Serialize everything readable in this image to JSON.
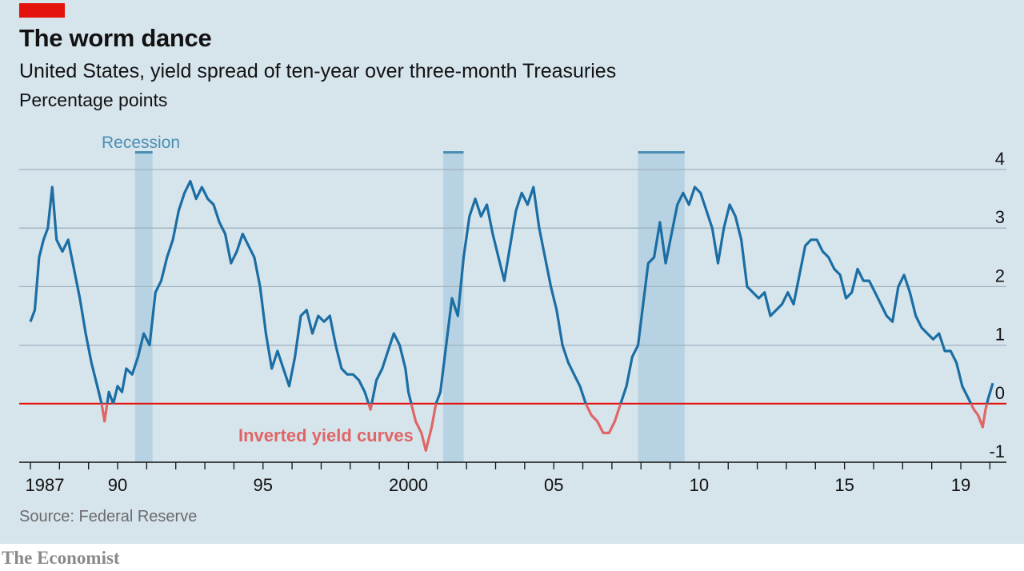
{
  "header": {
    "title": "The worm dance",
    "subtitle": "United States, yield spread of ten-year over three-month Treasuries",
    "unit": "Percentage points"
  },
  "footer": {
    "source": "Source: Federal Reserve",
    "brand": "The Economist"
  },
  "annotations": {
    "recession_label": "Recession",
    "inverted_label": "Inverted yield curves"
  },
  "colors": {
    "panel_background": "#d6e4ec",
    "series_line": "#1b6ea4",
    "inverted_segment": "#e06666",
    "zero_line": "#e3120b",
    "recession_band": "#b7d2e2",
    "recession_cap": "#4a8fb3",
    "gridline": "#9fb3c0",
    "brand_tag": "#e3120b"
  },
  "chart_data": {
    "type": "line",
    "title": "The worm dance",
    "subtitle": "United States, yield spread of ten-year over three-month Treasuries",
    "ylabel": "Percentage points",
    "xlabel": "",
    "xlim": [
      1987,
      2020.4
    ],
    "ylim": [
      -1,
      4
    ],
    "y_ticks": [
      -1,
      0,
      1,
      2,
      3,
      4
    ],
    "y_tick_labels": [
      "-1",
      "0",
      "1",
      "2",
      "3",
      "4"
    ],
    "x_tick_labels": [
      {
        "year": 1987,
        "label": "1987"
      },
      {
        "year": 1990,
        "label": "90"
      },
      {
        "year": 1995,
        "label": "95"
      },
      {
        "year": 2000,
        "label": "2000"
      },
      {
        "year": 2005,
        "label": "05"
      },
      {
        "year": 2010,
        "label": "10"
      },
      {
        "year": 2015,
        "label": "15"
      },
      {
        "year": 2019,
        "label": "19"
      }
    ],
    "grid": true,
    "recessions": [
      {
        "start": 1990.6,
        "end": 1991.2
      },
      {
        "start": 2001.2,
        "end": 2001.9
      },
      {
        "start": 2007.9,
        "end": 2009.5
      }
    ],
    "series": [
      {
        "values": [
          [
            1987.0,
            1.4
          ],
          [
            1987.15,
            1.6
          ],
          [
            1987.3,
            2.5
          ],
          [
            1987.45,
            2.8
          ],
          [
            1987.6,
            3.0
          ],
          [
            1987.75,
            3.7
          ],
          [
            1987.9,
            2.8
          ],
          [
            1988.1,
            2.6
          ],
          [
            1988.3,
            2.8
          ],
          [
            1988.5,
            2.3
          ],
          [
            1988.7,
            1.8
          ],
          [
            1988.9,
            1.2
          ],
          [
            1989.1,
            0.7
          ],
          [
            1989.3,
            0.3
          ],
          [
            1989.45,
            0.0
          ],
          [
            1989.55,
            -0.3
          ],
          [
            1989.7,
            0.2
          ],
          [
            1989.85,
            0.0
          ],
          [
            1990.0,
            0.3
          ],
          [
            1990.15,
            0.2
          ],
          [
            1990.3,
            0.6
          ],
          [
            1990.5,
            0.5
          ],
          [
            1990.7,
            0.8
          ],
          [
            1990.9,
            1.2
          ],
          [
            1991.1,
            1.0
          ],
          [
            1991.3,
            1.9
          ],
          [
            1991.5,
            2.1
          ],
          [
            1991.7,
            2.5
          ],
          [
            1991.9,
            2.8
          ],
          [
            1992.1,
            3.3
          ],
          [
            1992.3,
            3.6
          ],
          [
            1992.5,
            3.8
          ],
          [
            1992.7,
            3.5
          ],
          [
            1992.9,
            3.7
          ],
          [
            1993.1,
            3.5
          ],
          [
            1993.3,
            3.4
          ],
          [
            1993.5,
            3.1
          ],
          [
            1993.7,
            2.9
          ],
          [
            1993.9,
            2.4
          ],
          [
            1994.1,
            2.6
          ],
          [
            1994.3,
            2.9
          ],
          [
            1994.5,
            2.7
          ],
          [
            1994.7,
            2.5
          ],
          [
            1994.9,
            2.0
          ],
          [
            1995.1,
            1.2
          ],
          [
            1995.3,
            0.6
          ],
          [
            1995.5,
            0.9
          ],
          [
            1995.7,
            0.6
          ],
          [
            1995.9,
            0.3
          ],
          [
            1996.1,
            0.8
          ],
          [
            1996.3,
            1.5
          ],
          [
            1996.5,
            1.6
          ],
          [
            1996.7,
            1.2
          ],
          [
            1996.9,
            1.5
          ],
          [
            1997.1,
            1.4
          ],
          [
            1997.3,
            1.5
          ],
          [
            1997.5,
            1.0
          ],
          [
            1997.7,
            0.6
          ],
          [
            1997.9,
            0.5
          ],
          [
            1998.1,
            0.5
          ],
          [
            1998.3,
            0.4
          ],
          [
            1998.5,
            0.2
          ],
          [
            1998.7,
            -0.1
          ],
          [
            1998.9,
            0.4
          ],
          [
            1999.1,
            0.6
          ],
          [
            1999.3,
            0.9
          ],
          [
            1999.5,
            1.2
          ],
          [
            1999.7,
            1.0
          ],
          [
            1999.9,
            0.6
          ],
          [
            2000.0,
            0.2
          ],
          [
            2000.1,
            0.0
          ],
          [
            2000.25,
            -0.3
          ],
          [
            2000.45,
            -0.5
          ],
          [
            2000.6,
            -0.8
          ],
          [
            2000.8,
            -0.4
          ],
          [
            2000.95,
            0.0
          ],
          [
            2001.1,
            0.2
          ],
          [
            2001.3,
            1.0
          ],
          [
            2001.5,
            1.8
          ],
          [
            2001.7,
            1.5
          ],
          [
            2001.9,
            2.5
          ],
          [
            2002.1,
            3.2
          ],
          [
            2002.3,
            3.5
          ],
          [
            2002.5,
            3.2
          ],
          [
            2002.7,
            3.4
          ],
          [
            2002.9,
            2.9
          ],
          [
            2003.1,
            2.5
          ],
          [
            2003.3,
            2.1
          ],
          [
            2003.5,
            2.7
          ],
          [
            2003.7,
            3.3
          ],
          [
            2003.9,
            3.6
          ],
          [
            2004.1,
            3.4
          ],
          [
            2004.3,
            3.7
          ],
          [
            2004.5,
            3.0
          ],
          [
            2004.7,
            2.5
          ],
          [
            2004.9,
            2.0
          ],
          [
            2005.1,
            1.6
          ],
          [
            2005.3,
            1.0
          ],
          [
            2005.5,
            0.7
          ],
          [
            2005.7,
            0.5
          ],
          [
            2005.9,
            0.3
          ],
          [
            2006.1,
            0.0
          ],
          [
            2006.3,
            -0.2
          ],
          [
            2006.5,
            -0.3
          ],
          [
            2006.7,
            -0.5
          ],
          [
            2006.9,
            -0.5
          ],
          [
            2007.1,
            -0.3
          ],
          [
            2007.3,
            0.0
          ],
          [
            2007.5,
            0.3
          ],
          [
            2007.7,
            0.8
          ],
          [
            2007.9,
            1.0
          ],
          [
            2008.05,
            1.6
          ],
          [
            2008.25,
            2.4
          ],
          [
            2008.45,
            2.5
          ],
          [
            2008.65,
            3.1
          ],
          [
            2008.85,
            2.4
          ],
          [
            2009.05,
            2.9
          ],
          [
            2009.25,
            3.4
          ],
          [
            2009.45,
            3.6
          ],
          [
            2009.65,
            3.4
          ],
          [
            2009.85,
            3.7
          ],
          [
            2010.05,
            3.6
          ],
          [
            2010.25,
            3.3
          ],
          [
            2010.45,
            3.0
          ],
          [
            2010.65,
            2.4
          ],
          [
            2010.85,
            3.0
          ],
          [
            2011.05,
            3.4
          ],
          [
            2011.25,
            3.2
          ],
          [
            2011.45,
            2.8
          ],
          [
            2011.65,
            2.0
          ],
          [
            2011.85,
            1.9
          ],
          [
            2012.05,
            1.8
          ],
          [
            2012.25,
            1.9
          ],
          [
            2012.45,
            1.5
          ],
          [
            2012.65,
            1.6
          ],
          [
            2012.85,
            1.7
          ],
          [
            2013.05,
            1.9
          ],
          [
            2013.25,
            1.7
          ],
          [
            2013.45,
            2.2
          ],
          [
            2013.65,
            2.7
          ],
          [
            2013.85,
            2.8
          ],
          [
            2014.05,
            2.8
          ],
          [
            2014.25,
            2.6
          ],
          [
            2014.45,
            2.5
          ],
          [
            2014.65,
            2.3
          ],
          [
            2014.85,
            2.2
          ],
          [
            2015.05,
            1.8
          ],
          [
            2015.25,
            1.9
          ],
          [
            2015.45,
            2.3
          ],
          [
            2015.65,
            2.1
          ],
          [
            2015.85,
            2.1
          ],
          [
            2016.05,
            1.9
          ],
          [
            2016.25,
            1.7
          ],
          [
            2016.45,
            1.5
          ],
          [
            2016.65,
            1.4
          ],
          [
            2016.85,
            2.0
          ],
          [
            2017.05,
            2.2
          ],
          [
            2017.25,
            1.9
          ],
          [
            2017.45,
            1.5
          ],
          [
            2017.65,
            1.3
          ],
          [
            2017.85,
            1.2
          ],
          [
            2018.05,
            1.1
          ],
          [
            2018.25,
            1.2
          ],
          [
            2018.45,
            0.9
          ],
          [
            2018.65,
            0.9
          ],
          [
            2018.85,
            0.7
          ],
          [
            2019.05,
            0.3
          ],
          [
            2019.25,
            0.1
          ],
          [
            2019.45,
            -0.1
          ],
          [
            2019.6,
            -0.2
          ],
          [
            2019.75,
            -0.4
          ],
          [
            2019.85,
            -0.1
          ],
          [
            2019.95,
            0.1
          ],
          [
            2020.1,
            0.35
          ]
        ]
      }
    ]
  }
}
